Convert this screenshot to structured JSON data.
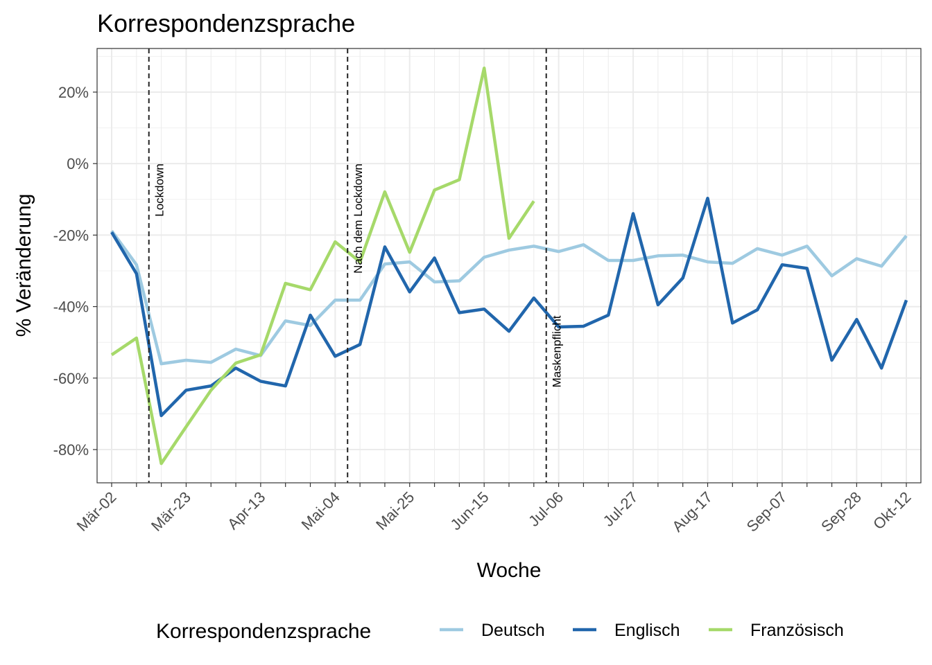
{
  "chart_data": {
    "type": "line",
    "title": "Korrespondenzsprache",
    "x_label": "Woche",
    "y_label": "% Veränderung",
    "legend_title": "Korrespondenzsprache",
    "categories": [
      "Mär-02",
      null,
      null,
      "Mär-23",
      null,
      null,
      "Apr-13",
      null,
      null,
      "Mai-04",
      null,
      null,
      "Mai-25",
      null,
      null,
      "Jun-15",
      null,
      null,
      "Jul-06",
      null,
      null,
      "Jul-27",
      null,
      null,
      "Aug-17",
      null,
      null,
      "Sep-07",
      null,
      null,
      "Sep-28",
      null,
      "Okt-12"
    ],
    "series": [
      {
        "name": "Deutsch",
        "color": "#9ecae1",
        "values": [
          -18.8,
          -28.3,
          -56.0,
          -55.0,
          -55.6,
          -51.9,
          -53.7,
          -44.0,
          -45.3,
          -38.2,
          -38.2,
          -28.1,
          -27.5,
          -33.1,
          -32.8,
          -26.2,
          -24.2,
          -23.1,
          -24.6,
          -22.7,
          -27.1,
          -27.1,
          -25.8,
          -25.6,
          -27.5,
          -27.9,
          -23.8,
          -25.6,
          -23.1,
          -31.4,
          -26.6,
          -28.7,
          -20.2
        ]
      },
      {
        "name": "Englisch",
        "color": "#2166ac",
        "values": [
          -19.2,
          -30.8,
          -70.5,
          -63.4,
          -62.2,
          -57.2,
          -60.9,
          -62.2,
          -42.4,
          -53.9,
          -50.6,
          -23.3,
          -35.9,
          -26.4,
          -41.7,
          -40.7,
          -46.9,
          -37.6,
          -45.7,
          -45.5,
          -42.4,
          -14.0,
          -39.5,
          -32.0,
          -9.7,
          -44.6,
          -40.9,
          -28.3,
          -29.3,
          -55.0,
          -43.6,
          -57.2,
          -38.2
        ]
      },
      {
        "name": "Französisch",
        "color": "#a6d96a",
        "values": [
          -53.5,
          -48.8,
          -83.9,
          -73.6,
          -63.4,
          -55.8,
          -53.5,
          -33.5,
          -35.3,
          -21.9,
          -27.5,
          -7.9,
          -24.8,
          -7.4,
          -4.5,
          26.7,
          -20.9,
          -10.5,
          null,
          null,
          null,
          null,
          null,
          null,
          null,
          null,
          null,
          null,
          null,
          null,
          null,
          null,
          null
        ]
      }
    ],
    "annotations": [
      {
        "x": 1.5,
        "y": 0,
        "label": "Lockdown"
      },
      {
        "x": 9.5,
        "y": 0,
        "label": "Nach dem Lockdown"
      },
      {
        "x": 17.5,
        "y": -42.5,
        "label": "Maskenpflicht"
      }
    ],
    "ylim": [
      -89.3,
      32.2
    ],
    "yticks": [
      {
        "value": -80,
        "label": "-80%"
      },
      {
        "value": -60,
        "label": "-60%"
      },
      {
        "value": -40,
        "label": "-40%"
      },
      {
        "value": -20,
        "label": "-20%"
      },
      {
        "value": 0,
        "label": "0%"
      },
      {
        "value": 20,
        "label": "20%"
      }
    ],
    "grid": true,
    "legend": "bottom"
  }
}
